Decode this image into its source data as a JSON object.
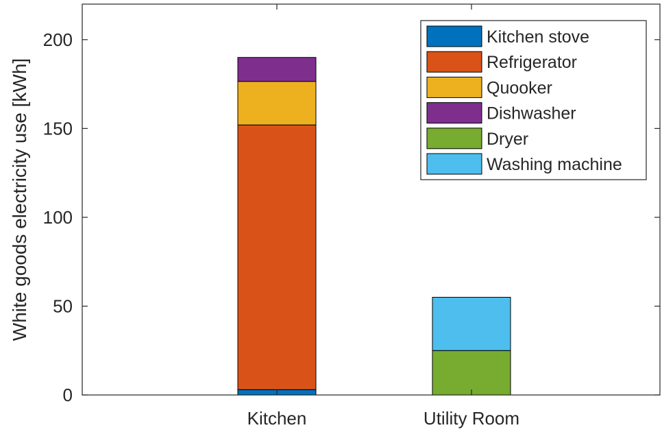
{
  "chart_data": {
    "type": "bar",
    "stacked": true,
    "categories": [
      "Kitchen",
      "Utility Room"
    ],
    "ylabel": "White goods electricity use [kWh]",
    "xlabel": "",
    "ylim": [
      0,
      220
    ],
    "yticks": [
      0,
      50,
      100,
      150,
      200
    ],
    "grid": false,
    "legend_position": "top-right",
    "series": [
      {
        "name": "Kitchen stove",
        "color": "#0072BD",
        "values": [
          3,
          0
        ]
      },
      {
        "name": "Refrigerator",
        "color": "#D95319",
        "values": [
          149,
          0
        ]
      },
      {
        "name": "Quooker",
        "color": "#EDB120",
        "values": [
          24.5,
          0
        ]
      },
      {
        "name": "Dishwasher",
        "color": "#7E2F8E",
        "values": [
          13.5,
          0
        ]
      },
      {
        "name": "Dryer",
        "color": "#77AC30",
        "values": [
          0,
          25
        ]
      },
      {
        "name": "Washing machine",
        "color": "#4DBEEE",
        "values": [
          0,
          30
        ]
      }
    ]
  }
}
